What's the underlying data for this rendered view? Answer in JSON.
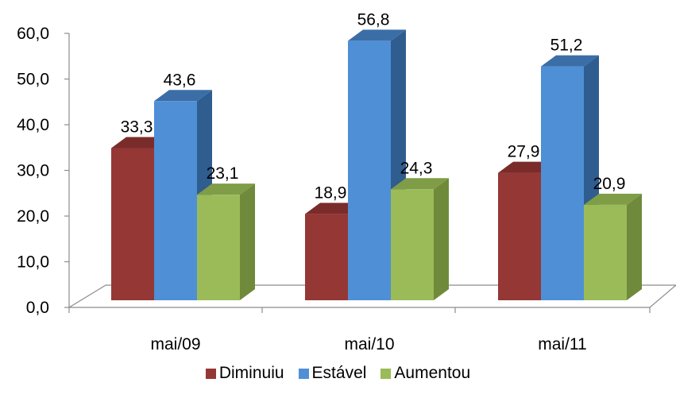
{
  "chart_data": {
    "type": "bar",
    "categories": [
      "mai/09",
      "mai/10",
      "mai/11"
    ],
    "series": [
      {
        "name": "Diminuiu",
        "values": [
          33.3,
          18.9,
          27.9
        ],
        "labels": [
          "33,3",
          "18,9",
          "27,9"
        ],
        "color": "#953735",
        "side_color": "#6d2726",
        "top_color": "#7a2c2a"
      },
      {
        "name": "Estável",
        "values": [
          43.6,
          56.8,
          51.2
        ],
        "labels": [
          "43,6",
          "56,8",
          "51,2"
        ],
        "color": "#4f8fd6",
        "side_color": "#2f5d8f",
        "top_color": "#3b6ea6"
      },
      {
        "name": "Aumentou",
        "values": [
          23.1,
          24.3,
          20.9
        ],
        "labels": [
          "23,1",
          "24,3",
          "20,9"
        ],
        "color": "#9bbb59",
        "side_color": "#6f8a3a",
        "top_color": "#7f9d47"
      }
    ],
    "yticks": [
      "0,0",
      "10,0",
      "20,0",
      "30,0",
      "40,0",
      "50,0",
      "60,0"
    ],
    "ylim": [
      0,
      60
    ],
    "legend_position": "bottom"
  }
}
